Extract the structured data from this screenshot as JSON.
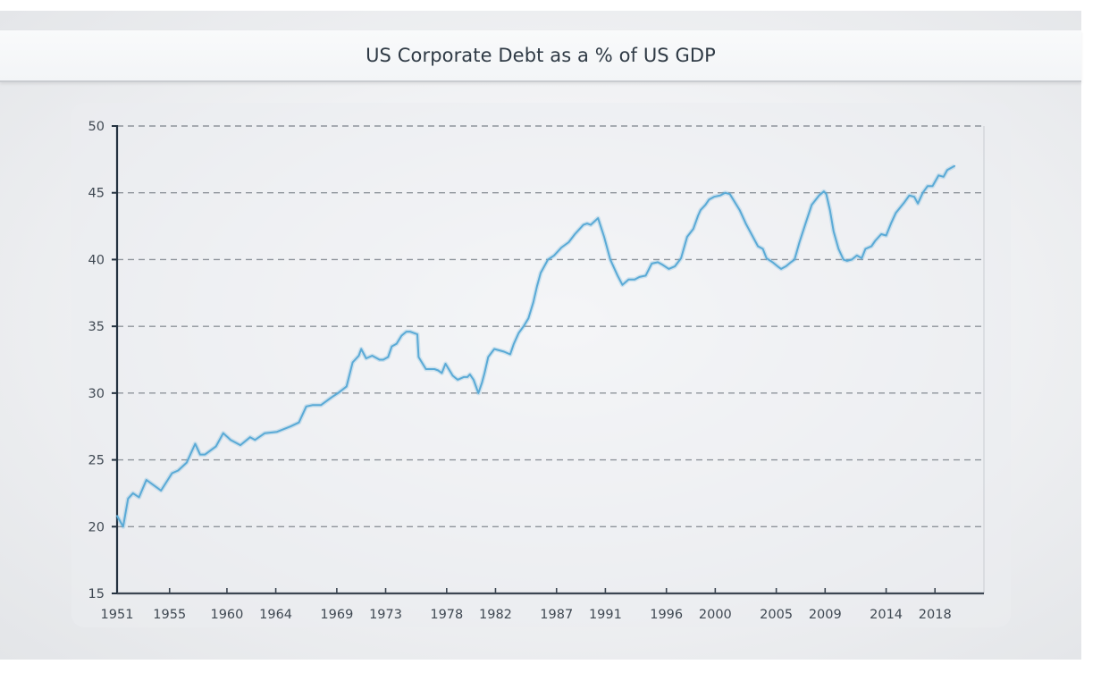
{
  "chart_data": {
    "type": "line",
    "title": "US Corporate Debt as a % of US GDP",
    "xlabel": "",
    "ylabel": "",
    "xlim": [
      1951,
      2023.5
    ],
    "ylim": [
      15,
      50
    ],
    "yticks": [
      15,
      20,
      25,
      30,
      35,
      40,
      45,
      50
    ],
    "xticks": [
      {
        "value": 1951,
        "label": "1951"
      },
      {
        "value": 1955.3,
        "label": "1955"
      },
      {
        "value": 1960,
        "label": "1960"
      },
      {
        "value": 1964,
        "label": "1964"
      },
      {
        "value": 1969,
        "label": "1969"
      },
      {
        "value": 1973,
        "label": "1973"
      },
      {
        "value": 1978,
        "label": "1978"
      },
      {
        "value": 1982,
        "label": "1982"
      },
      {
        "value": 1987,
        "label": "1987"
      },
      {
        "value": 1991,
        "label": "1991"
      },
      {
        "value": 1996,
        "label": "1996"
      },
      {
        "value": 2000,
        "label": "2000"
      },
      {
        "value": 2005,
        "label": "2005"
      },
      {
        "value": 2009,
        "label": "2009"
      },
      {
        "value": 2014,
        "label": "2014"
      },
      {
        "value": 2018,
        "label": "2018"
      }
    ],
    "grid": "horizontal-dashed",
    "legend": "none",
    "line_color": "#5aaad6",
    "series": [
      {
        "name": "Corporate Debt % of GDP",
        "x": [
          1951.0,
          1951.5,
          1951.9,
          1952.3,
          1952.8,
          1953.4,
          1954.6,
          1955.5,
          1956.0,
          1956.7,
          1957.4,
          1957.8,
          1958.2,
          1959.1,
          1959.7,
          1960.3,
          1961.1,
          1961.9,
          1962.3,
          1963.1,
          1964.1,
          1965.2,
          1965.9,
          1966.5,
          1967.0,
          1967.7,
          1968.6,
          1969.1,
          1969.8,
          1970.3,
          1970.8,
          1971.0,
          1971.4,
          1971.9,
          1972.5,
          1972.8,
          1973.2,
          1973.5,
          1973.9,
          1974.3,
          1974.7,
          1975.0,
          1975.6,
          1975.7,
          1976.3,
          1977.0,
          1977.3,
          1977.6,
          1977.9,
          1978.5,
          1978.9,
          1979.4,
          1979.7,
          1979.9,
          1980.2,
          1980.6,
          1980.9,
          1981.1,
          1981.4,
          1981.9,
          1982.3,
          1982.7,
          1983.2,
          1983.5,
          1983.9,
          1984.3,
          1984.7,
          1985.1,
          1985.4,
          1985.7,
          1986.3,
          1986.8,
          1987.4,
          1988.0,
          1988.5,
          1988.9,
          1989.2,
          1989.5,
          1989.8,
          1990.4,
          1990.9,
          1991.4,
          1992.0,
          1992.4,
          1992.9,
          1993.4,
          1993.8,
          1994.3,
          1994.8,
          1995.3,
          1995.7,
          1996.2,
          1996.7,
          1997.2,
          1997.7,
          1998.2,
          1998.6,
          1998.8,
          1999.2,
          1999.5,
          1999.9,
          2000.4,
          2000.8,
          2001.2,
          2002.0,
          2002.5,
          2003.5,
          2003.9,
          2004.2,
          2004.7,
          2005.1,
          2005.4,
          2005.8,
          2006.2,
          2006.5,
          2006.9,
          2007.4,
          2007.9,
          2008.5,
          2008.9,
          2009.1,
          2009.4,
          2009.7,
          2010.1,
          2010.5,
          2010.8,
          2011.2,
          2011.6,
          2012.0,
          2012.3,
          2012.8,
          2013.1,
          2013.6,
          2014.0,
          2014.4,
          2014.8,
          2015.5,
          2015.9,
          2016.3,
          2016.6,
          2017.0,
          2017.4,
          2017.8,
          2018.3,
          2018.7,
          2019.0,
          2019.6
        ],
        "values": [
          20.8,
          20.0,
          22.1,
          22.5,
          22.2,
          23.5,
          22.7,
          24.0,
          24.2,
          24.8,
          26.2,
          25.4,
          25.4,
          26.0,
          27.0,
          26.5,
          26.1,
          26.7,
          26.5,
          27.0,
          27.1,
          27.5,
          27.8,
          29.0,
          29.1,
          29.1,
          29.7,
          30.0,
          30.5,
          32.3,
          32.8,
          33.3,
          32.6,
          32.8,
          32.5,
          32.5,
          32.7,
          33.5,
          33.7,
          34.3,
          34.6,
          34.6,
          34.4,
          32.7,
          31.8,
          31.8,
          31.7,
          31.5,
          32.2,
          31.3,
          31.0,
          31.2,
          31.2,
          31.4,
          31.0,
          30.0,
          30.8,
          31.5,
          32.7,
          33.3,
          33.2,
          33.1,
          32.9,
          33.7,
          34.5,
          35.0,
          35.6,
          36.8,
          38.0,
          39.0,
          40.0,
          40.3,
          40.9,
          41.3,
          41.9,
          42.3,
          42.6,
          42.7,
          42.6,
          43.1,
          41.7,
          40.0,
          38.8,
          38.1,
          38.5,
          38.5,
          38.7,
          38.8,
          39.7,
          39.8,
          39.6,
          39.3,
          39.5,
          40.1,
          41.7,
          42.3,
          43.3,
          43.7,
          44.1,
          44.5,
          44.7,
          44.8,
          45.0,
          44.9,
          43.7,
          42.7,
          41.0,
          40.8,
          40.1,
          39.8,
          39.5,
          39.3,
          39.5,
          39.8,
          40.0,
          41.3,
          42.7,
          44.1,
          44.8,
          45.1,
          44.9,
          43.7,
          42.1,
          40.8,
          40.0,
          39.9,
          40.0,
          40.3,
          40.1,
          40.8,
          41.0,
          41.4,
          41.9,
          41.8,
          42.7,
          43.5,
          44.3,
          44.8,
          44.7,
          44.2,
          45.0,
          45.5,
          45.5,
          46.3,
          46.2,
          46.7,
          47.0
        ]
      }
    ]
  }
}
